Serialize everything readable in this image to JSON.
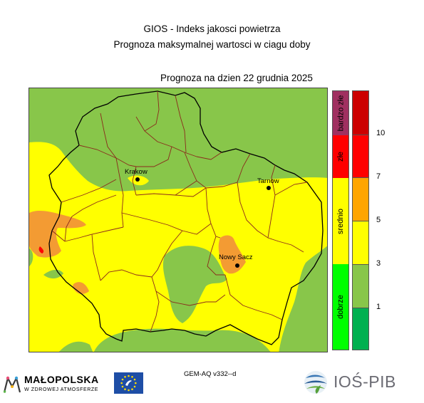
{
  "header": {
    "title_line1": "GIOS - Indeks jakosci powietrza",
    "title_line2": "Prognoza maksymalnej wartosci w ciagu doby",
    "forecast_date": "Prognoza na dzien  22 grudnia 2025"
  },
  "map": {
    "cities": [
      {
        "name": "Krakow",
        "label": "Krakow"
      },
      {
        "name": "Tarnow",
        "label": "Tarnow"
      },
      {
        "name": "Nowy Sacz",
        "label": "Nowy Sacz"
      }
    ]
  },
  "legend": {
    "categories": [
      {
        "label": "bardzo złe",
        "color": "#a03060"
      },
      {
        "label": "złe",
        "color": "#ff0000"
      },
      {
        "label": "srednio",
        "color": "#ffff00"
      },
      {
        "label": "dobrze",
        "color": "#00ff00"
      }
    ],
    "levels": [
      {
        "color": "#cc0000"
      },
      {
        "color": "#ff0000"
      },
      {
        "color": "#ffa500"
      },
      {
        "color": "#ffff00"
      },
      {
        "color": "#88c64a"
      },
      {
        "color": "#00b050"
      }
    ],
    "ticks": [
      "10",
      "7",
      "5",
      "3",
      "1"
    ]
  },
  "footer": {
    "model": "GEM-AQ v332--d",
    "malopolska_name": "MAŁOPOLSKA",
    "malopolska_tagline": "W ZDROWEJ ATMOSFERZE",
    "ios_name": "IOŚ-PIB"
  }
}
